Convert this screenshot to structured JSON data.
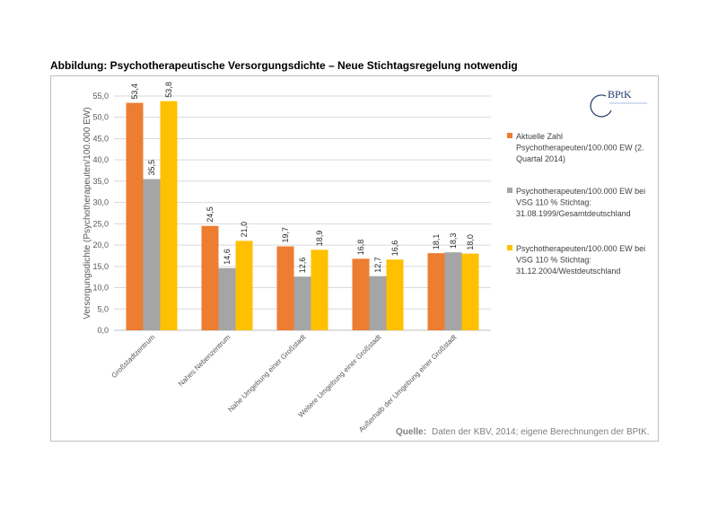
{
  "title": "Abbildung: Psychotherapeutische Versorgungsdichte – Neue Stichtagsregelung notwendig",
  "logo": {
    "text": "BPtK"
  },
  "source": {
    "label": "Quelle:",
    "text": "Daten der KBV, 2014; eigene Berechnungen der BPtK."
  },
  "colors": {
    "series1": "#ed7d31",
    "series2": "#a5a5a5",
    "series3": "#ffc000",
    "grid": "#d9d9d9",
    "axis": "#bfbfbf"
  },
  "chart_data": {
    "type": "bar",
    "ylabel": "Versorgungsdichte (Psychotherapeuten/100.000 EW)",
    "xlabel": "",
    "ylim": [
      0,
      55
    ],
    "yticks": [
      "0,0",
      "5,0",
      "10,0",
      "15,0",
      "20,0",
      "25,0",
      "30,0",
      "35,0",
      "40,0",
      "45,0",
      "50,0",
      "55,0"
    ],
    "grid": true,
    "legend_position": "right",
    "categories": [
      "Großstadtzentrum",
      "Nahes Nebenzentrum",
      "Nahe Umgebung einer Großstadt",
      "Weitere Umgebung einer Großstadt",
      "Außerhalb der Umgebung einer Großstadt"
    ],
    "series": [
      {
        "name": "Aktuelle Zahl Psychotherapeuten/100.000 EW (2. Quartal 2014)",
        "legend_lines": [
          "Aktuelle Zahl",
          "Psychotherapeuten/100.000 EW (2.",
          "Quartal 2014)"
        ],
        "values": [
          53.4,
          24.5,
          19.7,
          16.8,
          18.1
        ],
        "labels": [
          "53,4",
          "24,5",
          "19,7",
          "16,8",
          "18,1"
        ]
      },
      {
        "name": "Psychotherapeuten/100.000 EW bei VSG 110 % Stichtag: 31.08.1999/Gesamtdeutschland",
        "legend_lines": [
          "Psychotherapeuten/100.000 EW bei",
          "VSG 110 % Stichtag:",
          "31.08.1999/Gesamtdeutschland"
        ],
        "values": [
          35.5,
          14.6,
          12.6,
          12.7,
          18.3
        ],
        "labels": [
          "35,5",
          "14,6",
          "12,6",
          "12,7",
          "18,3"
        ]
      },
      {
        "name": "Psychotherapeuten/100.000 EW bei VSG 110 % Stichtag: 31.12.2004/Westdeutschland",
        "legend_lines": [
          "Psychotherapeuten/100.000 EW bei",
          "VSG 110 % Stichtag:",
          "31.12.2004/Westdeutschland"
        ],
        "values": [
          53.8,
          21.0,
          18.9,
          16.6,
          18.0
        ],
        "labels": [
          "53,8",
          "21,0",
          "18,9",
          "16,6",
          "18,0"
        ]
      }
    ]
  }
}
